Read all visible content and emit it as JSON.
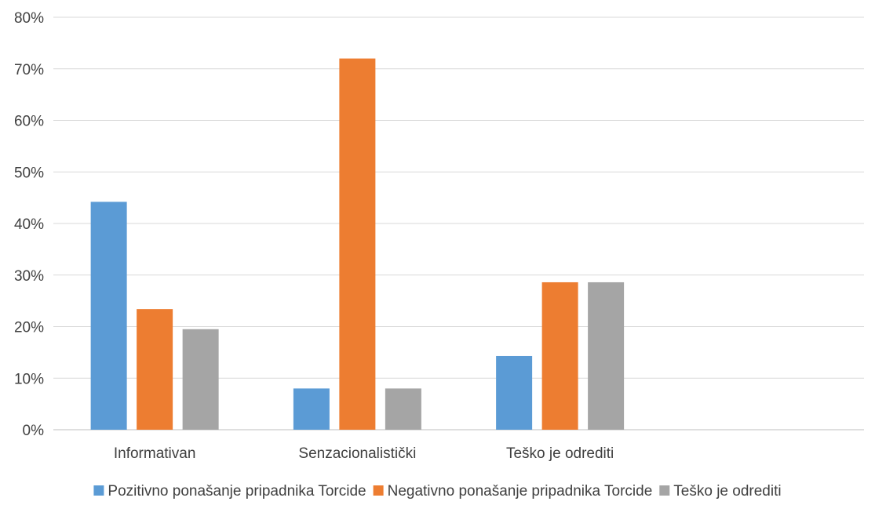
{
  "chart_data": {
    "type": "bar",
    "categories": [
      "Informativan",
      "Senzacionalistički",
      "Teško je odrediti",
      ""
    ],
    "series": [
      {
        "name": "Pozitivno ponašanje pripadnika Torcide",
        "color": "#5B9BD5",
        "values": [
          44.2,
          8.0,
          14.3,
          null
        ]
      },
      {
        "name": "Negativno ponašanje pripadnika Torcide",
        "color": "#ED7D31",
        "values": [
          23.4,
          72.0,
          28.6,
          null
        ]
      },
      {
        "name": "Teško je odrediti",
        "color": "#A5A5A5",
        "values": [
          19.5,
          8.0,
          28.6,
          null
        ]
      }
    ],
    "y_ticks": [
      "0%",
      "10%",
      "20%",
      "30%",
      "40%",
      "50%",
      "60%",
      "70%",
      "80%"
    ],
    "ylim": [
      0,
      80
    ],
    "grid": true,
    "legend": "bottom",
    "title": "",
    "xlabel": "",
    "ylabel": ""
  }
}
